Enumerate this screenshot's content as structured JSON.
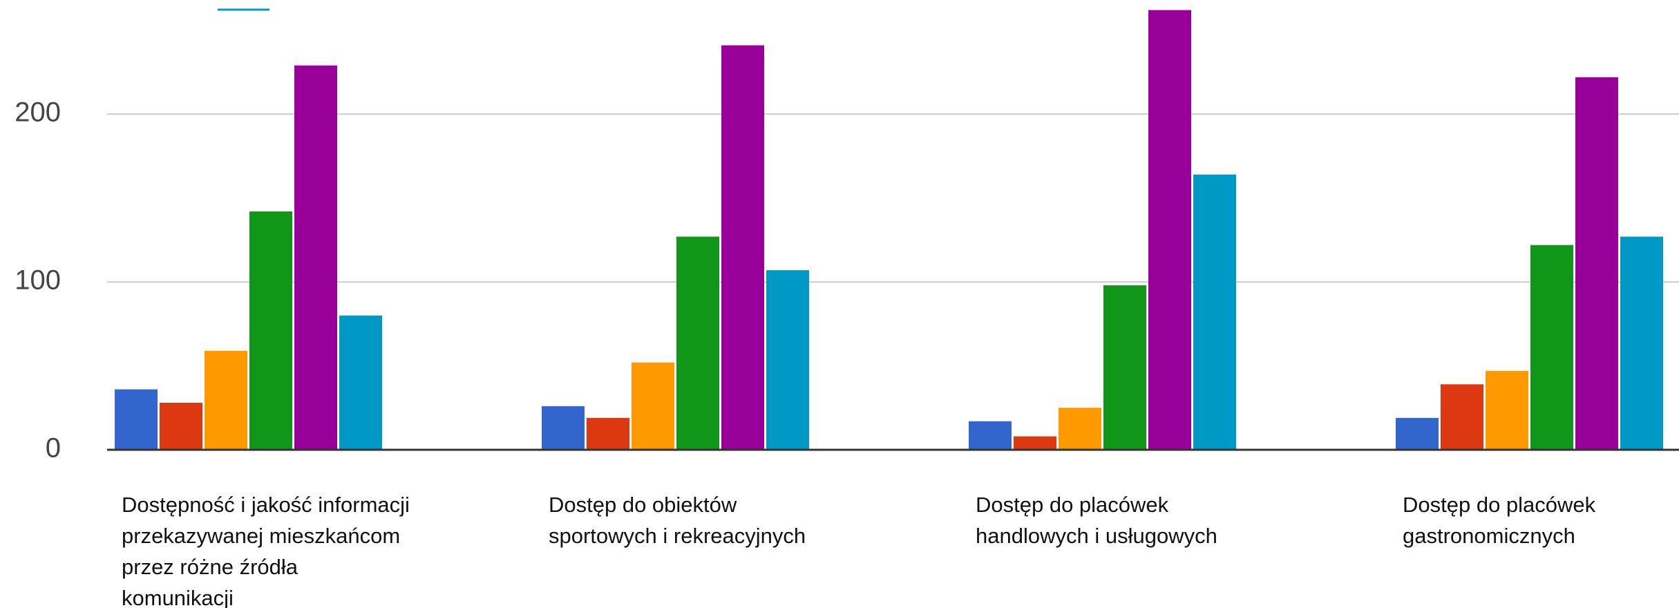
{
  "chart_data": {
    "type": "bar",
    "categories": [
      "Dostępność i jakość informacji przekazywanej mieszkańcom przez różne źródła komunikacji",
      "Dostęp do obiektów sportowych i rekreacyjnych",
      "Dostęp do placówek handlowych i usługowych",
      "Dostęp do placówek gastronomicznych"
    ],
    "series": [
      {
        "color": "#3366cc",
        "values": [
          36,
          26,
          17,
          19
        ]
      },
      {
        "color": "#dc3912",
        "values": [
          28,
          19,
          8,
          39
        ]
      },
      {
        "color": "#ff9900",
        "values": [
          59,
          52,
          25,
          47
        ]
      },
      {
        "color": "#109618",
        "values": [
          142,
          127,
          98,
          122
        ]
      },
      {
        "color": "#990099",
        "values": [
          229,
          241,
          262,
          222
        ]
      },
      {
        "color": "#0099c6",
        "values": [
          80,
          107,
          164,
          127
        ]
      }
    ],
    "ylim": [
      0,
      268
    ],
    "yticks": [
      0,
      100,
      200
    ],
    "grid": true
  }
}
